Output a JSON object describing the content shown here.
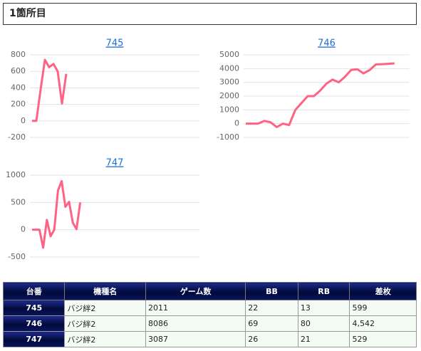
{
  "header": {
    "title": "1箇所目"
  },
  "chart_data": [
    {
      "type": "line",
      "title": "745",
      "color": "#ff6384",
      "grid": true,
      "values": [
        0,
        0,
        380,
        740,
        650,
        690,
        600,
        210,
        570
      ],
      "ylim": [
        -200,
        800
      ],
      "yticks": [
        -200,
        0,
        200,
        400,
        600,
        800
      ]
    },
    {
      "type": "line",
      "title": "746",
      "color": "#ff6384",
      "grid": true,
      "values": [
        0,
        0,
        0,
        200,
        100,
        -250,
        0,
        -100,
        1000,
        1500,
        2000,
        2000,
        2400,
        2900,
        3200,
        3000,
        3400,
        3900,
        3950,
        3650,
        3900,
        4300,
        4320,
        4350,
        4380
      ],
      "ylim": [
        -1000,
        5000
      ],
      "yticks": [
        -1000,
        0,
        1000,
        2000,
        3000,
        4000,
        5000
      ]
    },
    {
      "type": "line",
      "title": "747",
      "color": "#ff6384",
      "grid": true,
      "values": [
        0,
        0,
        0,
        -330,
        180,
        -120,
        0,
        720,
        890,
        420,
        510,
        130,
        10,
        500
      ],
      "ylim": [
        -500,
        1000
      ],
      "yticks": [
        -500,
        0,
        500,
        1000
      ]
    }
  ],
  "table": {
    "headers": [
      "台番",
      "機種名",
      "ゲーム数",
      "BB",
      "RB",
      "差枚"
    ],
    "rows": [
      [
        "745",
        "バジ絆2",
        "2011",
        "22",
        "13",
        "599"
      ],
      [
        "746",
        "バジ絆2",
        "8086",
        "69",
        "80",
        "4,542"
      ],
      [
        "747",
        "バジ絆2",
        "3087",
        "26",
        "21",
        "529"
      ]
    ]
  }
}
